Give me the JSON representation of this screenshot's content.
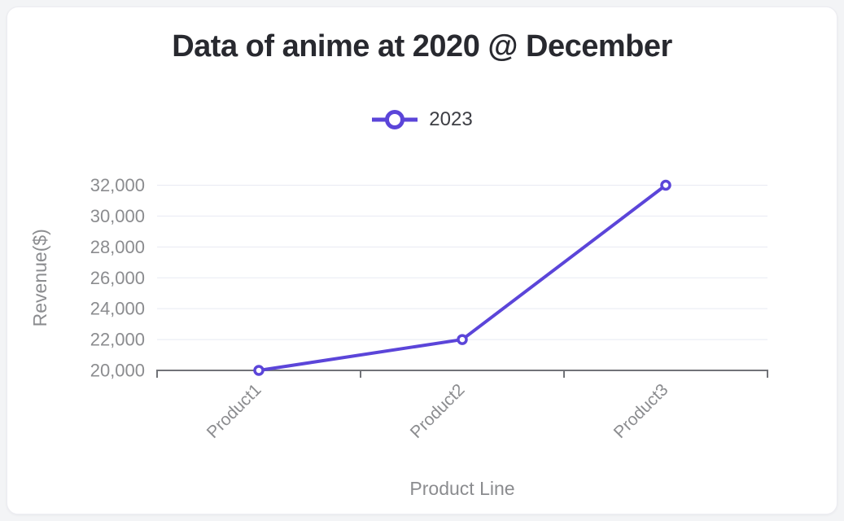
{
  "page": {
    "background": "#f3f4f6",
    "card_background": "#ffffff"
  },
  "header": {
    "title": "Data of anime at 2020 @ December"
  },
  "legend": {
    "position": "top-center",
    "items": [
      {
        "label": "2023",
        "color": "#5b45d9",
        "marker": "hollow-circle-on-line"
      }
    ]
  },
  "colors": {
    "accent": "#5b45d9",
    "grid": "#e8eaf3",
    "axis": "#717378",
    "axis_text": "#8b8c8f",
    "legend_text": "#3d3e44",
    "title_text": "#28292f"
  },
  "chart_data": {
    "type": "line",
    "title": "Data of anime at 2020 @ December",
    "categories": [
      "Product1",
      "Product2",
      "Product3"
    ],
    "series": [
      {
        "name": "2023",
        "values": [
          20000,
          22000,
          32000
        ]
      }
    ],
    "xlabel": "Product Line",
    "ylabel": "Revenue($)",
    "ylim": [
      20000,
      32000
    ],
    "ytick_step": 2000,
    "ytick_labels": [
      "20,000",
      "22,000",
      "24,000",
      "26,000",
      "28,000",
      "30,000",
      "32,000"
    ],
    "grid": "horizontal",
    "legend_position": "top-center",
    "x_label_rotation": -45,
    "marker_style": "hollow-circle"
  }
}
